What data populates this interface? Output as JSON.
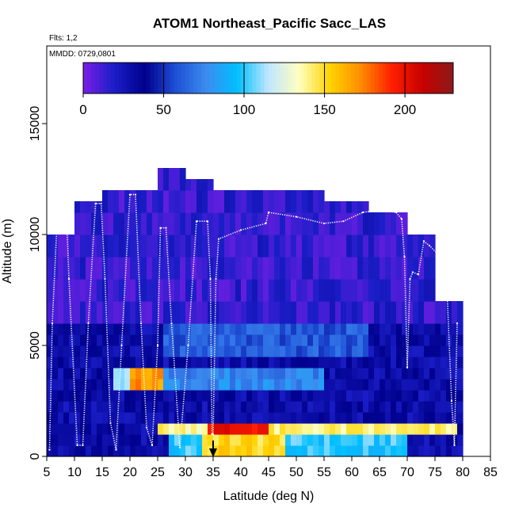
{
  "chart_data": {
    "type": "heatmap",
    "title": "ATOM1 Northeast_Pacific Sacc_LAS",
    "flights_label": "Flts: 1,2",
    "dates_label": "MMDD: 0729,0801",
    "xlabel": "Latitude (deg N)",
    "ylabel": "Altitude (m)",
    "xlim": [
      5,
      85
    ],
    "ylim": [
      0,
      18500
    ],
    "x_ticks": [
      "5",
      "10",
      "15",
      "20",
      "25",
      "30",
      "35",
      "40",
      "45",
      "50",
      "55",
      "60",
      "65",
      "70",
      "75",
      "80",
      "85"
    ],
    "x_tick_values": [
      5,
      10,
      15,
      20,
      25,
      30,
      35,
      40,
      45,
      50,
      55,
      60,
      65,
      70,
      75,
      80,
      85
    ],
    "y_ticks": [
      "0",
      "5000",
      "10000",
      "15000"
    ],
    "y_tick_values": [
      0,
      5000,
      10000,
      15000
    ],
    "grid": false,
    "colorbar": {
      "position": "top-inside",
      "range": [
        0,
        230
      ],
      "ticks": [
        "0",
        "50",
        "100",
        "150",
        "200"
      ],
      "tick_values": [
        0,
        50,
        100,
        150,
        200
      ],
      "colors": [
        "#7a1ee6",
        "#1b1ec7",
        "#00008c",
        "#1f4fd6",
        "#3c8cf0",
        "#00bfff",
        "#bfe6ff",
        "#ffffc0",
        "#ffd400",
        "#ff8c00",
        "#ff2000",
        "#c80000",
        "#8c1a1a"
      ]
    },
    "altitude_bins_m": [
      0,
      500,
      1000,
      1500,
      2000,
      2500,
      3000,
      3500,
      4000,
      4500,
      5000,
      5500,
      6000,
      7000,
      8000,
      9000,
      10000,
      11000,
      12000,
      13000
    ],
    "column_extents": [
      {
        "lat_range": [
          5,
          10
        ],
        "top_m": 10000
      },
      {
        "lat_range": [
          10,
          15
        ],
        "top_m": 11500
      },
      {
        "lat_range": [
          15,
          25
        ],
        "top_m": 12000
      },
      {
        "lat_range": [
          25,
          30
        ],
        "top_m": 13000
      },
      {
        "lat_range": [
          30,
          35
        ],
        "top_m": 12500
      },
      {
        "lat_range": [
          35,
          55
        ],
        "top_m": 12000
      },
      {
        "lat_range": [
          55,
          63
        ],
        "top_m": 11500
      },
      {
        "lat_range": [
          63,
          70
        ],
        "top_m": 11000
      },
      {
        "lat_range": [
          70,
          75
        ],
        "top_m": 10000
      },
      {
        "lat_range": [
          75,
          80
        ],
        "top_m": 7000
      }
    ],
    "features": [
      {
        "lat_range": [
          5,
          80
        ],
        "alt_range_m": [
          6000,
          13000
        ],
        "value": 15
      },
      {
        "lat_range": [
          5,
          80
        ],
        "alt_range_m": [
          0,
          6000
        ],
        "value": 30
      },
      {
        "lat_range": [
          26,
          63
        ],
        "alt_range_m": [
          4500,
          6000
        ],
        "value": 60
      },
      {
        "lat_range": [
          26,
          55
        ],
        "alt_range_m": [
          3000,
          4200
        ],
        "value": 75
      },
      {
        "lat_range": [
          17,
          26
        ],
        "alt_range_m": [
          3000,
          4000
        ],
        "value": 170
      },
      {
        "lat_range": [
          17,
          20
        ],
        "alt_range_m": [
          3000,
          4000
        ],
        "value": 105
      },
      {
        "lat_range": [
          25,
          79
        ],
        "alt_range_m": [
          800,
          1300
        ],
        "value": 140
      },
      {
        "lat_range": [
          34,
          45
        ],
        "alt_range_m": [
          800,
          1300
        ],
        "value": 200
      },
      {
        "lat_range": [
          27,
          70
        ],
        "alt_range_m": [
          200,
          800
        ],
        "value": 100
      },
      {
        "lat_range": [
          33,
          48
        ],
        "alt_range_m": [
          200,
          800
        ],
        "value": 150
      }
    ],
    "flight_track": [
      [
        5.5,
        300
      ],
      [
        6,
        6000
      ],
      [
        7,
        11300
      ],
      [
        8.5,
        11300
      ],
      [
        9,
        8000
      ],
      [
        10.5,
        500
      ],
      [
        11.5,
        500
      ],
      [
        12.5,
        6000
      ],
      [
        13.8,
        11400
      ],
      [
        14.8,
        11400
      ],
      [
        15.5,
        8000
      ],
      [
        16.5,
        1500
      ],
      [
        17.5,
        300
      ],
      [
        18.5,
        5000
      ],
      [
        20,
        11800
      ],
      [
        21,
        11800
      ],
      [
        22,
        6000
      ],
      [
        23,
        1300
      ],
      [
        24,
        500
      ],
      [
        25,
        5000
      ],
      [
        25.5,
        10300
      ],
      [
        26.5,
        10300
      ],
      [
        27.5,
        6000
      ],
      [
        29,
        400
      ],
      [
        30.5,
        5000
      ],
      [
        32,
        10600
      ],
      [
        34,
        10600
      ],
      [
        34.5,
        8000
      ],
      [
        34.8,
        1000
      ],
      [
        35,
        1000
      ],
      [
        35.5,
        8000
      ],
      [
        36,
        9800
      ],
      [
        40,
        10200
      ],
      [
        44.5,
        10500
      ],
      [
        45,
        11000
      ],
      [
        50,
        10800
      ],
      [
        55,
        10500
      ],
      [
        58.5,
        10600
      ],
      [
        62,
        11000
      ],
      [
        65,
        11100
      ],
      [
        68,
        11000
      ],
      [
        69,
        10700
      ],
      [
        69.5,
        9000
      ],
      [
        70,
        4000
      ],
      [
        70.5,
        8000
      ],
      [
        71,
        8300
      ],
      [
        72,
        8200
      ],
      [
        73,
        9700
      ],
      [
        74,
        9500
      ],
      [
        76,
        9000
      ],
      [
        77,
        8500
      ],
      [
        78,
        2500
      ],
      [
        78.5,
        500
      ],
      [
        79,
        6000
      ]
    ],
    "annotations": [
      {
        "type": "arrow-down",
        "lat": 35
      }
    ]
  }
}
